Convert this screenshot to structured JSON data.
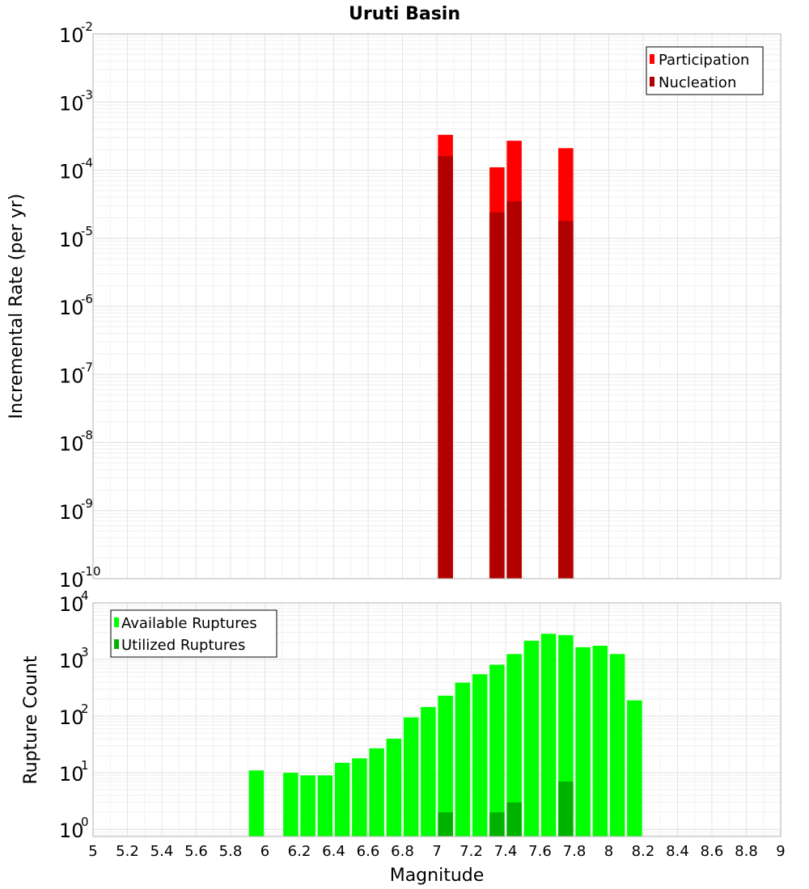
{
  "chart_data": [
    {
      "type": "bar",
      "panel": "top",
      "title": "Uruti Basin",
      "ylabel": "Incremental Rate (per yr)",
      "yscale": "log",
      "ylim": [
        1e-10,
        0.01
      ],
      "ytick_exponents": [
        "-10",
        "-9",
        "-8",
        "-7",
        "-6",
        "-5",
        "-4",
        "-3",
        "-2"
      ],
      "ytick_base": "10",
      "xlim": [
        5,
        9
      ],
      "grid": true,
      "legend_position": "top-right",
      "colors": {
        "participation": "#ff0000",
        "nucleation": "#b20000",
        "grid": "#e6e6e6"
      },
      "series": [
        {
          "name": "Participation",
          "x": [
            7.05,
            7.35,
            7.45,
            7.75
          ],
          "values": [
            0.00033,
            0.00011,
            0.00027,
            0.00021
          ]
        },
        {
          "name": "Nucleation",
          "x": [
            7.05,
            7.35,
            7.45,
            7.75
          ],
          "values": [
            0.00016,
            2.4e-05,
            3.5e-05,
            1.8e-05
          ]
        }
      ]
    },
    {
      "type": "bar",
      "panel": "bottom",
      "ylabel": "Rupture Count",
      "xlabel": "Magnitude",
      "yscale": "log",
      "ylim": [
        0.75,
        10000
      ],
      "ytick_exponents": [
        "0",
        "1",
        "2",
        "3",
        "4"
      ],
      "ytick_base": "10",
      "xlim": [
        5,
        9
      ],
      "xticks": [
        "5",
        "5.2",
        "5.4",
        "5.6",
        "5.8",
        "6",
        "6.2",
        "6.4",
        "6.6",
        "6.8",
        "7",
        "7.2",
        "7.4",
        "7.6",
        "7.8",
        "8",
        "8.2",
        "8.4",
        "8.6",
        "8.8",
        "9"
      ],
      "grid": true,
      "legend_position": "top-left",
      "colors": {
        "available": "#00ff00",
        "utilized": "#00b200",
        "grid": "#e6e6e6"
      },
      "series": [
        {
          "name": "Available Ruptures",
          "x": [
            5.95,
            6.15,
            6.25,
            6.35,
            6.45,
            6.55,
            6.65,
            6.75,
            6.85,
            6.95,
            7.05,
            7.15,
            7.25,
            7.35,
            7.45,
            7.55,
            7.65,
            7.75,
            7.85,
            7.95,
            8.05,
            8.15
          ],
          "values": [
            11,
            10,
            9,
            9,
            15,
            18,
            27,
            40,
            95,
            145,
            230,
            390,
            550,
            810,
            1250,
            2150,
            2850,
            2700,
            1650,
            1750,
            1250,
            190
          ]
        },
        {
          "name": "Utilized Ruptures",
          "x": [
            7.05,
            7.35,
            7.45,
            7.75
          ],
          "values": [
            2,
            2,
            3,
            7
          ]
        }
      ]
    }
  ]
}
